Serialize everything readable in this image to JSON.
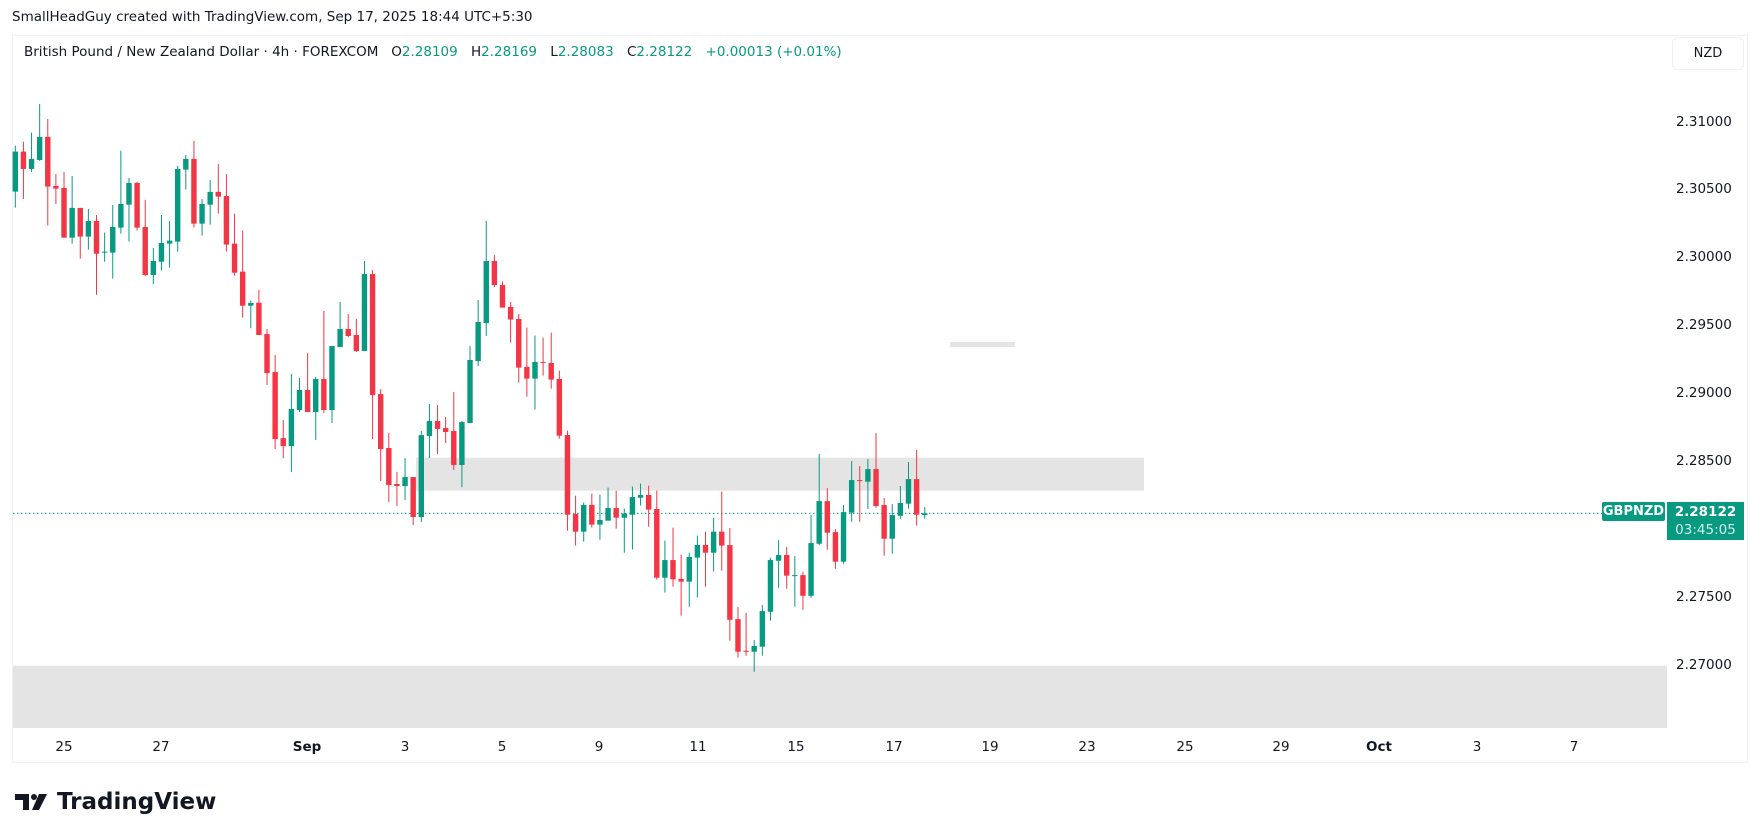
{
  "caption": "SmallHeadGuy created with TradingView.com, Sep 17, 2025 18:44 UTC+5:30",
  "legend": {
    "title": "British Pound / New Zealand Dollar · 4h · FOREXCOM",
    "o_label": "O",
    "o_value": "2.28109",
    "h_label": "H",
    "h_value": "2.28169",
    "l_label": "L",
    "l_value": "2.28083",
    "c_label": "C",
    "c_value": "2.28122",
    "change": "+0.00013 (+0.01%)"
  },
  "currency_button": "NZD",
  "price_tag": {
    "symbol": "GBPNZD",
    "price": "2.28122",
    "countdown": "03:45:05"
  },
  "logo_text": "TradingView",
  "colors": {
    "up": "#089981",
    "down": "#F23645",
    "zone": "#e4e4e4"
  },
  "chart_data": {
    "type": "candlestick",
    "symbol": "GBPNZD",
    "interval": "4h",
    "ylim": [
      2.26541,
      2.31437
    ],
    "y_ticks": [
      "2.31000",
      "2.30500",
      "2.30000",
      "2.29500",
      "2.29000",
      "2.28500",
      "2.27500",
      "2.27000"
    ],
    "x_ticks": [
      {
        "label": "25",
        "bold": false
      },
      {
        "label": "27",
        "bold": false
      },
      {
        "label": "Sep",
        "bold": true
      },
      {
        "label": "3",
        "bold": false
      },
      {
        "label": "5",
        "bold": false
      },
      {
        "label": "9",
        "bold": false
      },
      {
        "label": "11",
        "bold": false
      },
      {
        "label": "15",
        "bold": false
      },
      {
        "label": "17",
        "bold": false
      },
      {
        "label": "19",
        "bold": false
      },
      {
        "label": "23",
        "bold": false
      },
      {
        "label": "25",
        "bold": false
      },
      {
        "label": "29",
        "bold": false
      },
      {
        "label": "Oct",
        "bold": true
      },
      {
        "label": "3",
        "bold": false
      },
      {
        "label": "7",
        "bold": false
      }
    ],
    "last_price": 2.28122,
    "zones": [
      {
        "name": "resistance-zone",
        "top": 2.28532,
        "bottom": 2.28289
      },
      {
        "name": "support-zone",
        "top": 2.27,
        "bottom": 2.26541
      }
    ],
    "ohlc": [
      [
        2.30491,
        2.3083,
        2.30373,
        2.30786
      ],
      [
        2.30786,
        2.30859,
        2.30437,
        2.30658
      ],
      [
        2.30658,
        2.30926,
        2.30636,
        2.30732
      ],
      [
        2.30724,
        2.31137,
        2.30717,
        2.30894
      ],
      [
        2.30894,
        2.31026,
        2.30241,
        2.30528
      ],
      [
        2.30533,
        2.30621,
        2.304,
        2.30513
      ],
      [
        2.30518,
        2.30636,
        2.30152,
        2.30152
      ],
      [
        2.30152,
        2.30606,
        2.30108,
        2.30371
      ],
      [
        2.30371,
        2.30371,
        2.29998,
        2.3016
      ],
      [
        2.3016,
        2.30363,
        2.30064,
        2.30275
      ],
      [
        2.30275,
        2.30319,
        2.29732,
        2.30034
      ],
      [
        2.30044,
        2.30189,
        2.29975,
        2.30049
      ],
      [
        2.30042,
        2.30393,
        2.2985,
        2.30231
      ],
      [
        2.30226,
        2.30793,
        2.30182,
        2.304
      ],
      [
        2.30395,
        2.30592,
        2.30123,
        2.30555
      ],
      [
        2.30555,
        2.30562,
        2.30204,
        2.30226
      ],
      [
        2.30231,
        2.3043,
        2.2987,
        2.29877
      ],
      [
        2.29877,
        2.30076,
        2.29811,
        2.2998
      ],
      [
        2.29975,
        2.30319,
        2.29909,
        2.30113
      ],
      [
        2.30108,
        2.30275,
        2.29931,
        2.3013
      ],
      [
        2.30123,
        2.3068,
        2.30049,
        2.30658
      ],
      [
        2.30653,
        2.30761,
        2.30506,
        2.30732
      ],
      [
        2.30732,
        2.30864,
        2.30226,
        2.30255
      ],
      [
        2.30255,
        2.30437,
        2.30167,
        2.304
      ],
      [
        2.30395,
        2.30577,
        2.30248,
        2.30489
      ],
      [
        2.30489,
        2.30695,
        2.30329,
        2.30454
      ],
      [
        2.30459,
        2.30621,
        2.30049,
        2.30101
      ],
      [
        2.30108,
        2.30329,
        2.29872,
        2.29894
      ],
      [
        2.29902,
        2.30204,
        2.29563,
        2.29651
      ],
      [
        2.29651,
        2.29688,
        2.29484,
        2.29671
      ],
      [
        2.29673,
        2.29766,
        2.29435,
        2.29435
      ],
      [
        2.29442,
        2.29479,
        2.29067,
        2.29155
      ],
      [
        2.29162,
        2.29288,
        2.28595,
        2.28669
      ],
      [
        2.28676,
        2.28809,
        2.28529,
        2.28617
      ],
      [
        2.28617,
        2.29148,
        2.28426,
        2.2889
      ],
      [
        2.28883,
        2.29118,
        2.28868,
        2.2903
      ],
      [
        2.2903,
        2.29302,
        2.28868,
        2.28868
      ],
      [
        2.28868,
        2.29126,
        2.28662,
        2.29111
      ],
      [
        2.29111,
        2.29612,
        2.28861,
        2.28883
      ],
      [
        2.28883,
        2.29354,
        2.28787,
        2.29354
      ],
      [
        2.29347,
        2.29678,
        2.29347,
        2.29479
      ],
      [
        2.29479,
        2.2959,
        2.2942,
        2.29428
      ],
      [
        2.29435,
        2.29553,
        2.2931,
        2.29317
      ],
      [
        2.29317,
        2.2998,
        2.29317,
        2.29884
      ],
      [
        2.29884,
        2.29914,
        2.28669,
        2.28993
      ],
      [
        2.29,
        2.29037,
        2.2836,
        2.28595
      ],
      [
        2.28603,
        2.28713,
        2.28205,
        2.2833
      ],
      [
        2.28338,
        2.28426,
        2.28176,
        2.28323
      ],
      [
        2.28323,
        2.28529,
        2.2822,
        2.28389
      ],
      [
        2.28389,
        2.28389,
        2.28036,
        2.28095
      ],
      [
        2.28095,
        2.28728,
        2.28058,
        2.28698
      ],
      [
        2.28691,
        2.28927,
        2.28529,
        2.28802
      ],
      [
        2.28802,
        2.28919,
        2.28559,
        2.28743
      ],
      [
        2.2875,
        2.28831,
        2.2864,
        2.28721
      ],
      [
        2.28728,
        2.29015,
        2.28441,
        2.28478
      ],
      [
        2.28478,
        2.28802,
        2.28315,
        2.28794
      ],
      [
        2.28787,
        2.29354,
        2.28787,
        2.29251
      ],
      [
        2.29243,
        2.29693,
        2.29207,
        2.29531
      ],
      [
        2.29523,
        2.30275,
        2.29428,
        2.2998
      ],
      [
        2.2998,
        2.30024,
        2.29788,
        2.29803
      ],
      [
        2.29803,
        2.2983,
        2.29637,
        2.29637
      ],
      [
        2.29642,
        2.29679,
        2.29379,
        2.29549
      ],
      [
        2.29553,
        2.2959,
        2.29085,
        2.29195
      ],
      [
        2.292,
        2.2949,
        2.28981,
        2.29114
      ],
      [
        2.29114,
        2.29431,
        2.28886,
        2.29237
      ],
      [
        2.29237,
        2.29416,
        2.29136,
        2.29232
      ],
      [
        2.29229,
        2.29453,
        2.2904,
        2.29107
      ],
      [
        2.29112,
        2.29173,
        2.28672,
        2.28694
      ],
      [
        2.28699,
        2.28731,
        2.27994,
        2.28112
      ],
      [
        2.28117,
        2.28252,
        2.27884,
        2.27987
      ],
      [
        2.27987,
        2.28201,
        2.27913,
        2.28184
      ],
      [
        2.28184,
        2.28267,
        2.28017,
        2.28039
      ],
      [
        2.28039,
        2.2826,
        2.27928,
        2.28073
      ],
      [
        2.28068,
        2.28311,
        2.28068,
        2.28161
      ],
      [
        2.28161,
        2.28289,
        2.28009,
        2.2809
      ],
      [
        2.2809,
        2.28157,
        2.27832,
        2.2812
      ],
      [
        2.28112,
        2.28319,
        2.27855,
        2.28242
      ],
      [
        2.28237,
        2.28341,
        2.28179,
        2.28257
      ],
      [
        2.28257,
        2.28326,
        2.28024,
        2.28149
      ],
      [
        2.28154,
        2.28289,
        2.27634,
        2.27648
      ],
      [
        2.27648,
        2.27921,
        2.27538,
        2.27778
      ],
      [
        2.27778,
        2.28017,
        2.27582,
        2.27636
      ],
      [
        2.27639,
        2.27818,
        2.27368,
        2.27619
      ],
      [
        2.27619,
        2.27832,
        2.27435,
        2.27801
      ],
      [
        2.27796,
        2.27958,
        2.27503,
        2.27889
      ],
      [
        2.27889,
        2.27987,
        2.27582,
        2.27832
      ],
      [
        2.27832,
        2.2809,
        2.27693,
        2.27987
      ],
      [
        2.27987,
        2.28282,
        2.277,
        2.27884
      ],
      [
        2.27888,
        2.28014,
        2.27184,
        2.27338
      ],
      [
        2.27343,
        2.27432,
        2.27059,
        2.27103
      ],
      [
        2.2711,
        2.27388,
        2.27073,
        2.27105
      ],
      [
        2.27103,
        2.27189,
        2.26955,
        2.27145
      ],
      [
        2.2714,
        2.27446,
        2.27073,
        2.27402
      ],
      [
        2.27397,
        2.27795,
        2.27331,
        2.27778
      ],
      [
        2.27773,
        2.27925,
        2.27574,
        2.27815
      ],
      [
        2.27815,
        2.27874,
        2.27567,
        2.27663
      ],
      [
        2.27663,
        2.27807,
        2.27434,
        2.27667
      ],
      [
        2.27667,
        2.27692,
        2.27412,
        2.27515
      ],
      [
        2.27515,
        2.28109,
        2.275,
        2.27903
      ],
      [
        2.27898,
        2.28559,
        2.27888,
        2.28212
      ],
      [
        2.28212,
        2.28308,
        2.27854,
        2.27979
      ],
      [
        2.27984,
        2.28006,
        2.27714,
        2.27766
      ],
      [
        2.27766,
        2.28183,
        2.27751,
        2.28131
      ],
      [
        2.28127,
        2.28507,
        2.2806,
        2.28367
      ],
      [
        2.28367,
        2.2847,
        2.2806,
        2.28362
      ],
      [
        2.28355,
        2.28522,
        2.28154,
        2.28448
      ],
      [
        2.28448,
        2.28713,
        2.28163,
        2.28176
      ],
      [
        2.28183,
        2.28235,
        2.2781,
        2.27935
      ],
      [
        2.27935,
        2.2819,
        2.27825,
        2.28109
      ],
      [
        2.28104,
        2.28323,
        2.28082,
        2.28198
      ],
      [
        2.28193,
        2.285,
        2.28156,
        2.28374
      ],
      [
        2.28374,
        2.28588,
        2.28031,
        2.28112
      ],
      [
        2.28109,
        2.28169,
        2.28083,
        2.28122
      ]
    ]
  }
}
